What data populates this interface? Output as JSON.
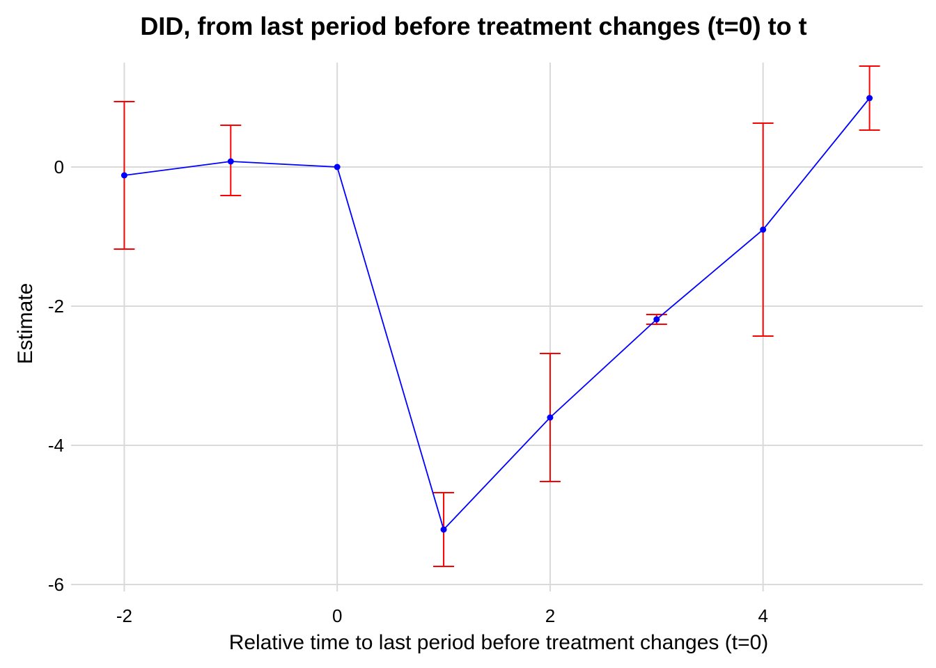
{
  "chart_data": {
    "type": "line",
    "title": "DID, from last period before treatment changes (t=0) to t",
    "xlabel": "Relative time to last period before treatment changes (t=0)",
    "ylabel": "Estimate",
    "x_ticks": [
      -2,
      0,
      2,
      4
    ],
    "y_ticks": [
      0,
      -2,
      -4,
      -6
    ],
    "xlim": [
      -2.5,
      5.5
    ],
    "ylim": [
      -6.1,
      1.5
    ],
    "grid": true,
    "legend": "none",
    "colors": {
      "line": "#0000ff",
      "points": "#0000ff",
      "error_bars": "#ff0000",
      "grid": "#d9d9d9"
    },
    "series": [
      {
        "x": [
          -2,
          -1,
          0,
          1,
          2,
          3,
          4,
          5
        ],
        "y": [
          -0.12,
          0.08,
          0.0,
          -5.21,
          -3.6,
          -2.19,
          -0.9,
          0.99
        ],
        "lower": [
          -1.18,
          -0.41,
          0.0,
          -5.74,
          -4.52,
          -2.26,
          -2.43,
          0.53
        ],
        "upper": [
          0.94,
          0.6,
          0.0,
          -4.68,
          -2.68,
          -2.12,
          0.63,
          1.45
        ]
      }
    ]
  }
}
